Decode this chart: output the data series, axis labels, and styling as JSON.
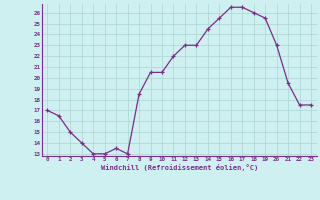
{
  "x": [
    0,
    1,
    2,
    3,
    4,
    5,
    6,
    7,
    8,
    9,
    10,
    11,
    12,
    13,
    14,
    15,
    16,
    17,
    18,
    19,
    20,
    21,
    22,
    23
  ],
  "y": [
    17,
    16.5,
    15,
    14,
    13,
    13,
    13.5,
    13,
    18.5,
    20.5,
    20.5,
    22,
    23,
    23,
    24.5,
    25.5,
    26.5,
    26.5,
    26,
    25.5,
    23,
    19.5,
    17.5,
    17.5
  ],
  "line_color": "#7B2D8B",
  "marker_color": "#7B2D8B",
  "bg_color": "#cff0f0",
  "grid_color": "#b0d8d8",
  "xlabel": "Windchill (Refroidissement éolien,°C)",
  "xlabel_color": "#7B2D8B",
  "tick_color": "#7B2D8B",
  "spine_color": "#7B2D8B",
  "ylim": [
    12.8,
    26.8
  ],
  "xlim": [
    -0.5,
    23.5
  ],
  "yticks": [
    13,
    14,
    15,
    16,
    17,
    18,
    19,
    20,
    21,
    22,
    23,
    24,
    25,
    26
  ],
  "xticks": [
    0,
    1,
    2,
    3,
    4,
    5,
    6,
    7,
    8,
    9,
    10,
    11,
    12,
    13,
    14,
    15,
    16,
    17,
    18,
    19,
    20,
    21,
    22,
    23
  ],
  "xtick_labels": [
    "0",
    "1",
    "2",
    "3",
    "4",
    "5",
    "6",
    "7",
    "8",
    "9",
    "10",
    "11",
    "12",
    "13",
    "14",
    "15",
    "16",
    "17",
    "18",
    "19",
    "20",
    "21",
    "22",
    "23"
  ],
  "ytick_labels": [
    "13",
    "14",
    "15",
    "16",
    "17",
    "18",
    "19",
    "20",
    "21",
    "22",
    "23",
    "24",
    "25",
    "26"
  ]
}
